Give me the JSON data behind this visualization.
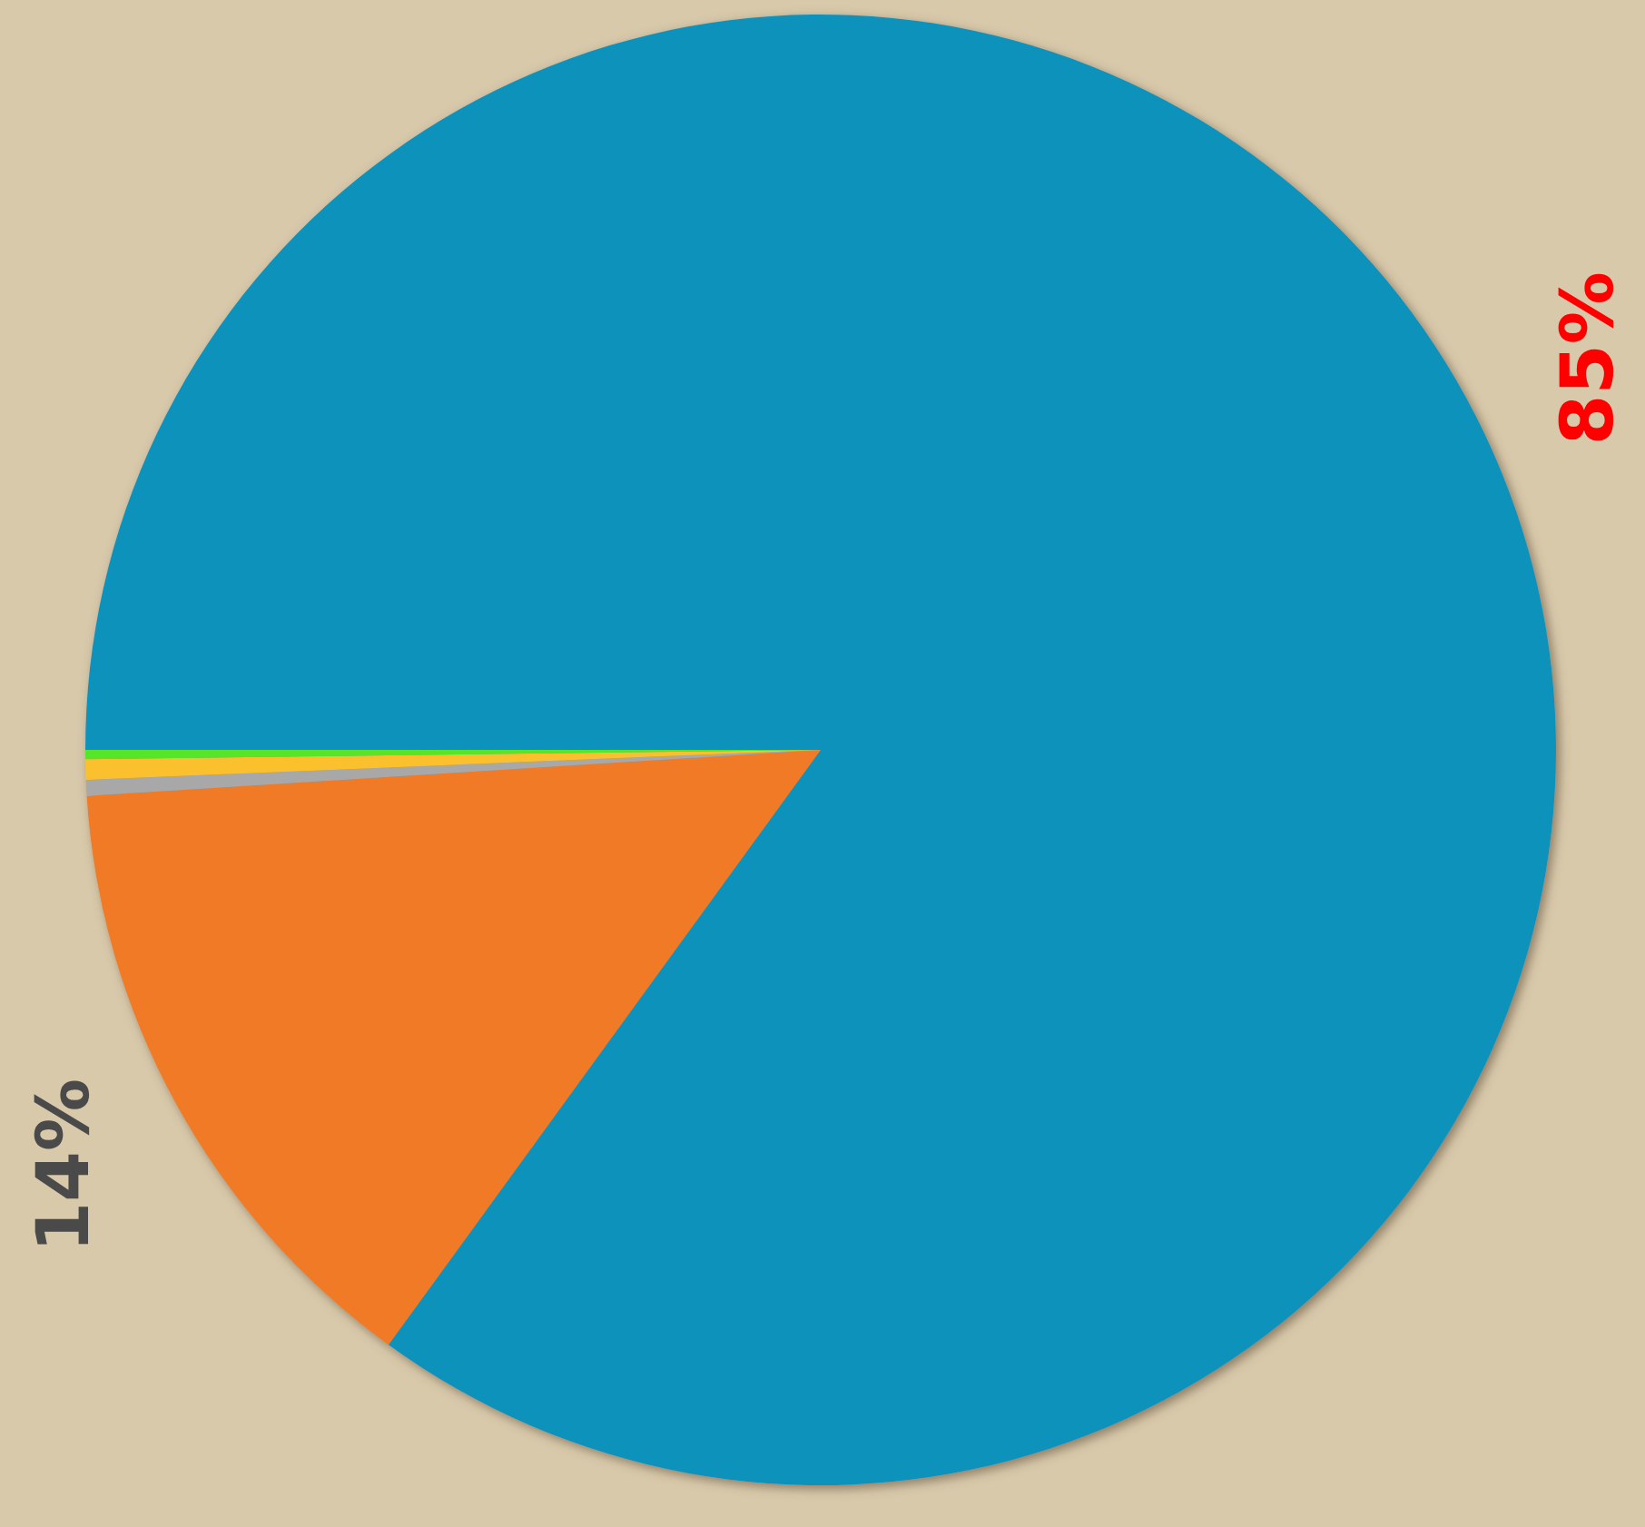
{
  "chart_data": {
    "type": "pie",
    "categories": [
      null,
      null,
      null,
      null,
      null
    ],
    "values": [
      85,
      14,
      0.35,
      0.45,
      0.2
    ],
    "colors": [
      "#1193bb",
      "#f07a28",
      "#a8a8a8",
      "#fbc02d",
      "#55e62a"
    ],
    "value_labels": [
      "85%",
      "14%",
      null,
      null,
      null
    ]
  }
}
